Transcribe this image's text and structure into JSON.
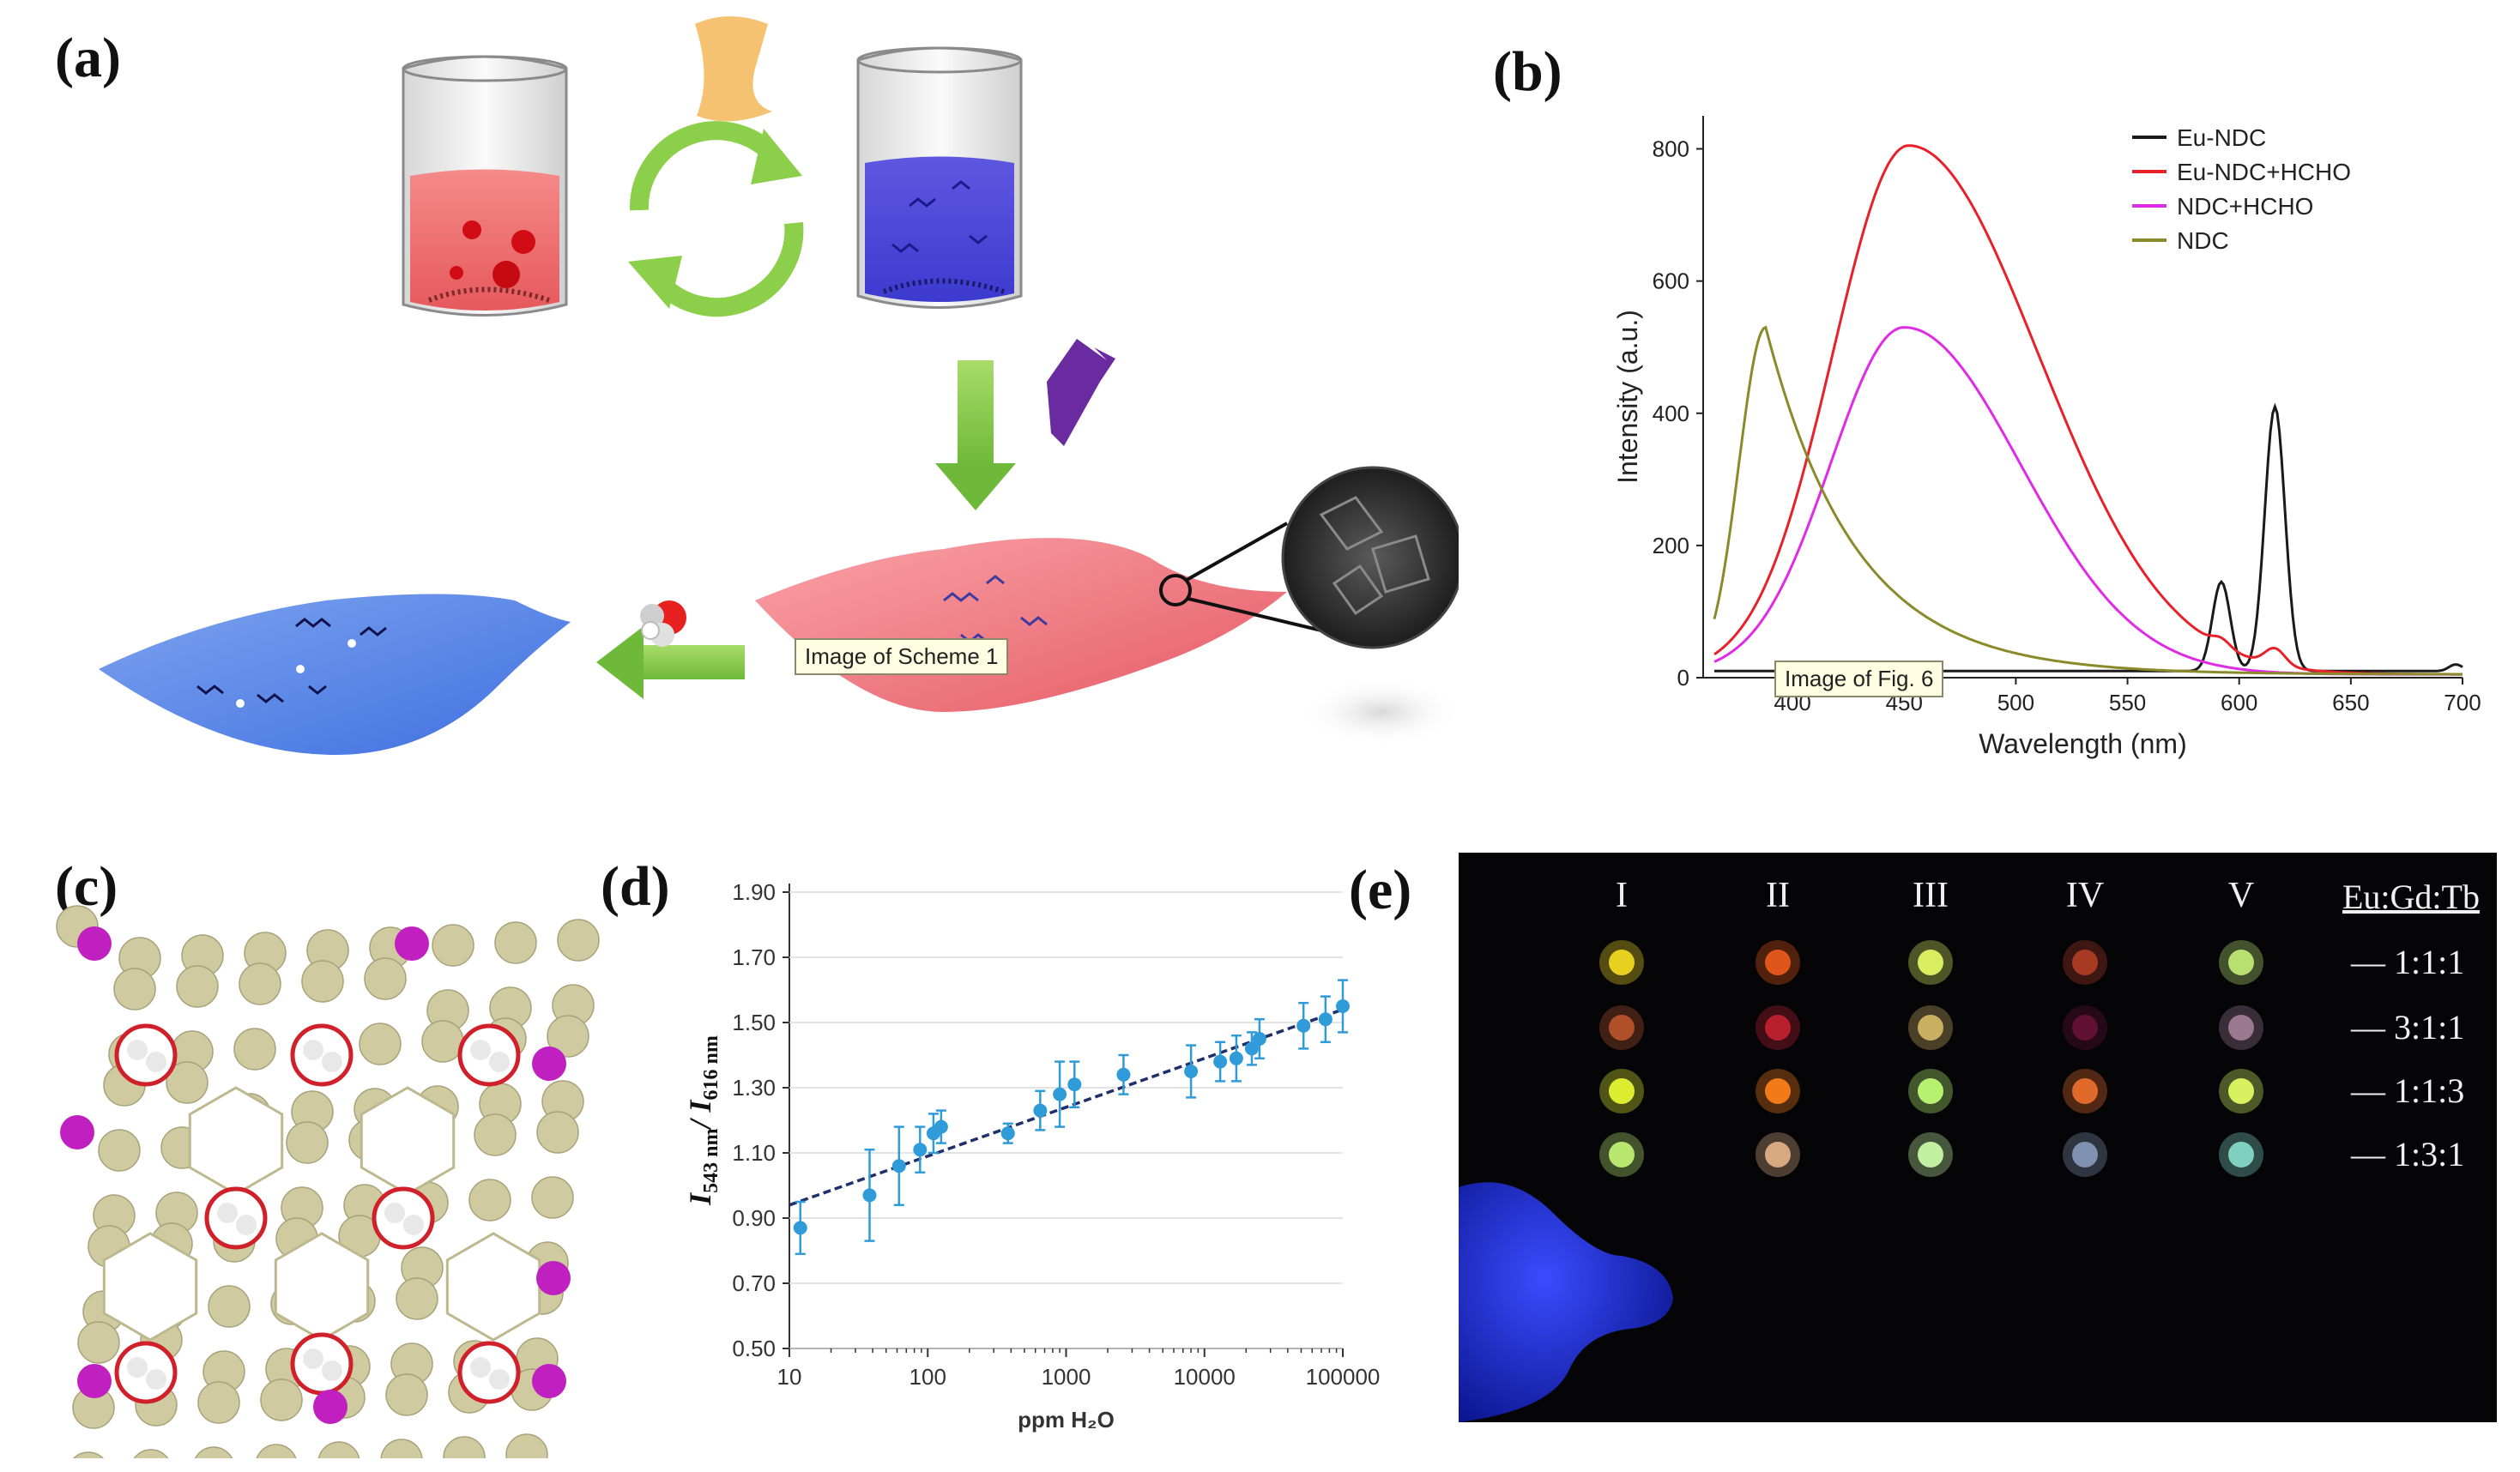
{
  "panels": {
    "a": "(a)",
    "b": "(b)",
    "c": "(c)",
    "d": "(d)",
    "e": "(e)"
  },
  "tooltips": {
    "scheme": "Image of Scheme 1",
    "fig": "Image of Fig. 6"
  },
  "chart_b": {
    "type": "line",
    "xlabel": "Wavelength (nm)",
    "ylabel": "Intensity  (a.u.)",
    "xlim": [
      360,
      700
    ],
    "ylim": [
      0,
      850
    ],
    "xticks": [
      400,
      450,
      500,
      550,
      600,
      650,
      700
    ],
    "yticks": [
      0,
      200,
      400,
      600,
      800
    ],
    "legend": [
      "Eu-NDC",
      "Eu-NDC+HCHO",
      "NDC+HCHO",
      "NDC"
    ],
    "colors": [
      "#1a1a1a",
      "#e8202a",
      "#e02be6",
      "#8a8a2a"
    ]
  },
  "chart_d": {
    "type": "scatter",
    "xlabel": "ppm H₂O",
    "ylabel_main": "I",
    "ylabel_sub1": "543 nm",
    "ylabel_sep": "/ I",
    "ylabel_sub2": "616 nm",
    "xscale": "log",
    "xlim": [
      10,
      100000
    ],
    "ylim": [
      0.5,
      1.9
    ],
    "xticks": [
      "10",
      "100",
      "1000",
      "10000",
      "100000"
    ],
    "yticks": [
      "0.50",
      "0.70",
      "0.90",
      "1.10",
      "1.30",
      "1.50",
      "1.70",
      "1.90"
    ],
    "points": [
      {
        "x": 12,
        "y": 0.87,
        "e": 0.08
      },
      {
        "x": 38,
        "y": 0.97,
        "e": 0.14
      },
      {
        "x": 62,
        "y": 1.06,
        "e": 0.12
      },
      {
        "x": 88,
        "y": 1.11,
        "e": 0.07
      },
      {
        "x": 110,
        "y": 1.16,
        "e": 0.06
      },
      {
        "x": 125,
        "y": 1.18,
        "e": 0.05
      },
      {
        "x": 380,
        "y": 1.16,
        "e": 0.03
      },
      {
        "x": 650,
        "y": 1.23,
        "e": 0.06
      },
      {
        "x": 900,
        "y": 1.28,
        "e": 0.1
      },
      {
        "x": 1150,
        "y": 1.31,
        "e": 0.07
      },
      {
        "x": 2600,
        "y": 1.34,
        "e": 0.06
      },
      {
        "x": 8000,
        "y": 1.35,
        "e": 0.08
      },
      {
        "x": 13000,
        "y": 1.38,
        "e": 0.06
      },
      {
        "x": 17000,
        "y": 1.39,
        "e": 0.07
      },
      {
        "x": 22000,
        "y": 1.42,
        "e": 0.05
      },
      {
        "x": 25000,
        "y": 1.45,
        "e": 0.06
      },
      {
        "x": 52000,
        "y": 1.49,
        "e": 0.07
      },
      {
        "x": 75000,
        "y": 1.51,
        "e": 0.07
      },
      {
        "x": 100000,
        "y": 1.55,
        "e": 0.08
      }
    ],
    "fit": [
      [
        10,
        0.94
      ],
      [
        100000,
        1.54
      ]
    ]
  },
  "panel_e": {
    "columns": [
      "I",
      "II",
      "III",
      "IV",
      "V"
    ],
    "header": "Eu:Gd:Tb",
    "rows": [
      "— 1:1:1",
      "— 3:1:1",
      "— 1:1:3",
      "— 1:3:1"
    ],
    "dots": [
      [
        "#e7d020",
        "#e0561a",
        "#d8ee60",
        "#a83a24",
        "#b8e070"
      ],
      [
        "#b0502a",
        "#b82030",
        "#c8b060",
        "#601030",
        "#9a7890"
      ],
      [
        "#dcec30",
        "#f07a18",
        "#b8f070",
        "#e06a2a",
        "#d8f060"
      ],
      [
        "#b8e870",
        "#d8a880",
        "#c0f0a0",
        "#8090b0",
        "#80d0c0"
      ]
    ]
  }
}
